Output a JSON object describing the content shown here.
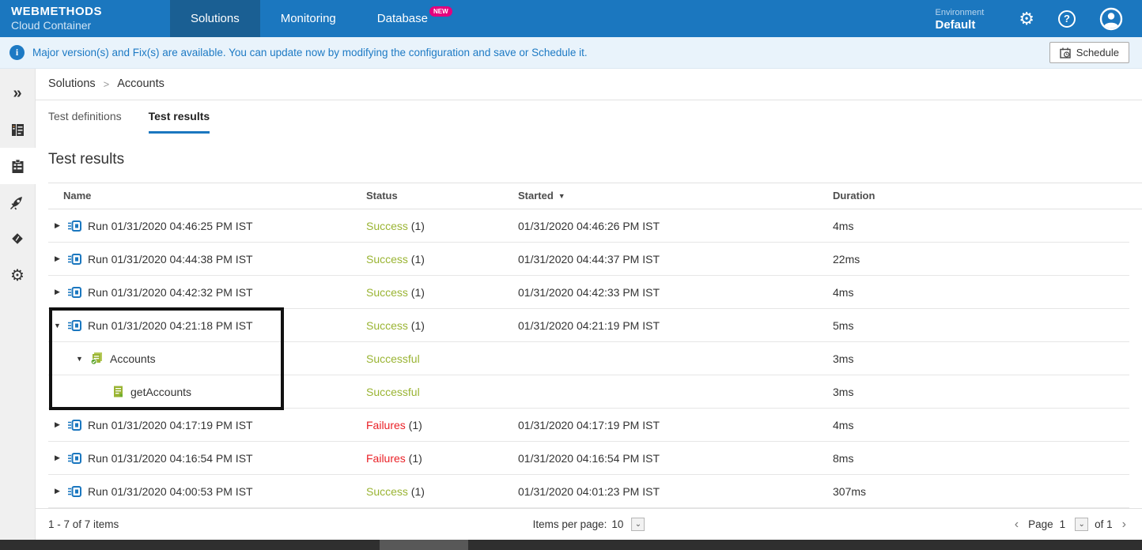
{
  "topbar": {
    "brand": {
      "line1": "WEBMETHODS",
      "line2": "Cloud Container"
    },
    "nav": [
      {
        "label": "Solutions",
        "active": true,
        "badge": ""
      },
      {
        "label": "Monitoring",
        "active": false,
        "badge": ""
      },
      {
        "label": "Database",
        "active": false,
        "badge": "NEW"
      }
    ],
    "environment": {
      "label": "Environment",
      "value": "Default"
    }
  },
  "banner": {
    "message": "Major version(s) and Fix(s) are available. You can update now by modifying the configuration and save or Schedule it.",
    "schedule_label": "Schedule"
  },
  "sidebar": {
    "items": [
      {
        "name": "collapse-expand",
        "active": false
      },
      {
        "name": "solutions",
        "active": false
      },
      {
        "name": "test-definitions",
        "active": true
      },
      {
        "name": "rocket-deploy",
        "active": false
      },
      {
        "name": "labels",
        "active": false
      },
      {
        "name": "settings",
        "active": false
      }
    ]
  },
  "breadcrumb": {
    "items": [
      "Solutions",
      "Accounts"
    ]
  },
  "tabs": [
    {
      "label": "Test definitions",
      "active": false
    },
    {
      "label": "Test results",
      "active": true
    }
  ],
  "page": {
    "title": "Test results"
  },
  "table": {
    "headers": {
      "name": "Name",
      "status": "Status",
      "started": "Started",
      "duration": "Duration"
    },
    "rows": [
      {
        "level": 0,
        "icon": "run",
        "expander": "collapsed",
        "name": "Run 01/31/2020 04:46:25 PM IST",
        "status": "Success",
        "status_kind": "success",
        "count": "(1)",
        "started": "01/31/2020 04:46:26 PM IST",
        "duration": "4ms",
        "highlighted": false
      },
      {
        "level": 0,
        "icon": "run",
        "expander": "collapsed",
        "name": "Run 01/31/2020 04:44:38 PM IST",
        "status": "Success",
        "status_kind": "success",
        "count": "(1)",
        "started": "01/31/2020 04:44:37 PM IST",
        "duration": "22ms",
        "highlighted": false
      },
      {
        "level": 0,
        "icon": "run",
        "expander": "collapsed",
        "name": "Run 01/31/2020 04:42:32 PM IST",
        "status": "Success",
        "status_kind": "success",
        "count": "(1)",
        "started": "01/31/2020 04:42:33 PM IST",
        "duration": "4ms",
        "highlighted": false
      },
      {
        "level": 0,
        "icon": "run",
        "expander": "expanded",
        "name": "Run 01/31/2020 04:21:18 PM IST",
        "status": "Success",
        "status_kind": "success",
        "count": "(1)",
        "started": "01/31/2020 04:21:19 PM IST",
        "duration": "5ms",
        "highlighted": true
      },
      {
        "level": 1,
        "icon": "suite",
        "expander": "expanded",
        "name": "Accounts",
        "status": "Successful",
        "status_kind": "success",
        "count": "",
        "started": "",
        "duration": "3ms",
        "highlighted": true
      },
      {
        "level": 2,
        "icon": "case",
        "expander": "none",
        "name": "getAccounts",
        "status": "Successful",
        "status_kind": "success",
        "count": "",
        "started": "",
        "duration": "3ms",
        "highlighted": true
      },
      {
        "level": 0,
        "icon": "run",
        "expander": "collapsed",
        "name": "Run 01/31/2020 04:17:19 PM IST",
        "status": "Failures",
        "status_kind": "failure",
        "count": "(1)",
        "started": "01/31/2020 04:17:19 PM IST",
        "duration": "4ms",
        "highlighted": false
      },
      {
        "level": 0,
        "icon": "run",
        "expander": "collapsed",
        "name": "Run 01/31/2020 04:16:54 PM IST",
        "status": "Failures",
        "status_kind": "failure",
        "count": "(1)",
        "started": "01/31/2020 04:16:54 PM IST",
        "duration": "8ms",
        "highlighted": false
      },
      {
        "level": 0,
        "icon": "run",
        "expander": "collapsed",
        "name": "Run 01/31/2020 04:00:53 PM IST",
        "status": "Success",
        "status_kind": "success",
        "count": "(1)",
        "started": "01/31/2020 04:01:23 PM IST",
        "duration": "307ms",
        "highlighted": false
      }
    ]
  },
  "footer": {
    "items_summary": "1 - 7 of 7 items",
    "items_per_page_label": "Items per page:",
    "items_per_page_value": "10",
    "pagination": {
      "page_label": "Page",
      "page_value": "1",
      "of_label": "of 1"
    }
  },
  "icons": {
    "sidebar_collapse": "»",
    "expand_collapsed": "▶",
    "expand_expanded": "▼",
    "sort_desc": "▼",
    "chevron_down": "⌄",
    "page_prev": "‹",
    "page_next": "›",
    "help": "?",
    "info": "i",
    "gear": "⚙"
  },
  "colors": {
    "topbar_blue": "#1b77bf",
    "active_nav_blue": "#1a5f93",
    "banner_bg": "#e9f3fb",
    "banner_text": "#1d7ac4",
    "success_green": "#9ab433",
    "failure_red": "#ea2127",
    "new_badge_pink": "#e5007d",
    "tab_underline_blue": "#1b77bf"
  }
}
